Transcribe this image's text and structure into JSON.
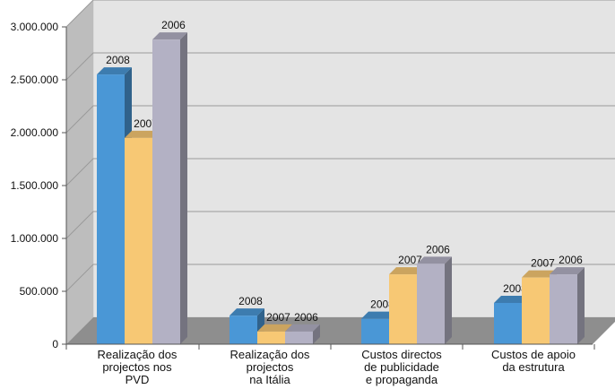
{
  "chart_data": {
    "type": "bar",
    "title": "",
    "xlabel": "",
    "ylabel": "",
    "ylim": [
      0,
      3000000
    ],
    "y_ticks": [
      "0",
      "500.000",
      "1.000.000",
      "1.500.000",
      "2.000.000",
      "2.500.000",
      "3.000.000"
    ],
    "grid": true,
    "legend": "none",
    "categories": [
      [
        "Realização dos",
        "projectos nos",
        "PVD"
      ],
      [
        "Realização dos",
        "projectos",
        "na Itália"
      ],
      [
        "Custos directos",
        "de publicidade",
        "e propaganda"
      ],
      [
        "Custos de apoio",
        "da estrutura"
      ]
    ],
    "series": [
      {
        "label": "2008",
        "color": "#4a97d6",
        "values": [
          2550000,
          270000,
          240000,
          390000
        ]
      },
      {
        "label": "2007",
        "color": "#f7c874",
        "values": [
          1950000,
          120000,
          660000,
          630000
        ]
      },
      {
        "label": "2006",
        "color": "#b3b1c4",
        "values": [
          2880000,
          120000,
          760000,
          660000
        ]
      }
    ]
  }
}
